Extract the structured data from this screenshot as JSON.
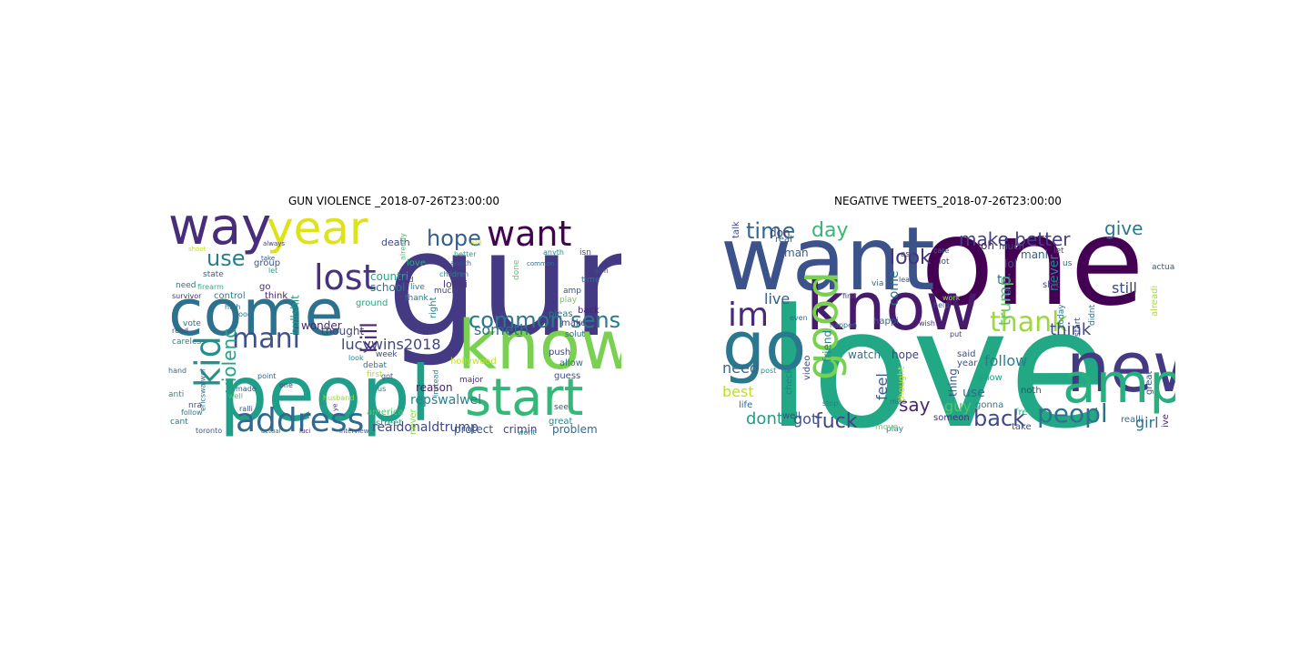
{
  "figure": {
    "panels": [
      {
        "title": "GUN VIOLENCE _2018-07-26T23:00:00",
        "words": [
          {
            "text": "gun",
            "color": "#443983"
          },
          {
            "text": "peopl",
            "color": "#1f9e89"
          },
          {
            "text": "come",
            "color": "#2c728e"
          },
          {
            "text": "know",
            "color": "#7ad151"
          },
          {
            "text": "way",
            "color": "#472d7b"
          },
          {
            "text": "year",
            "color": "#dde318"
          },
          {
            "text": "start",
            "color": "#35b779"
          },
          {
            "text": "address",
            "color": "#31688e"
          },
          {
            "text": "want",
            "color": "#440154"
          },
          {
            "text": "lost",
            "color": "#46327e"
          },
          {
            "text": "mani",
            "color": "#3b528b"
          },
          {
            "text": "kid",
            "color": "#21918c"
          },
          {
            "text": "common sens",
            "color": "#2a788e"
          },
          {
            "text": "hope",
            "color": "#355f8d"
          },
          {
            "text": "use",
            "color": "#277f8e"
          },
          {
            "text": "kill",
            "color": "#482576"
          },
          {
            "text": "violenc",
            "color": "#20a386"
          },
          {
            "text": "lucywins2018",
            "color": "#414487"
          },
          {
            "text": "someth",
            "color": "#2d708e"
          },
          {
            "text": "realdonaldtrump",
            "color": "#3e4a89"
          },
          {
            "text": "repswalwel",
            "color": "#26828e"
          },
          {
            "text": "wonder",
            "color": "#482878"
          },
          {
            "text": "reason",
            "color": "#481f70"
          },
          {
            "text": "thought",
            "color": "#3f4788"
          },
          {
            "text": "bullshit",
            "color": "#1e9b8a"
          },
          {
            "text": "problem",
            "color": "#31688e"
          },
          {
            "text": "crimin",
            "color": "#433e85"
          },
          {
            "text": "protect",
            "color": "#38588c"
          },
          {
            "text": "countri",
            "color": "#22a884"
          },
          {
            "text": "school",
            "color": "#2c728e"
          },
          {
            "text": "group",
            "color": "#3b528b"
          },
          {
            "text": "control",
            "color": "#287d8e"
          },
          {
            "text": "think",
            "color": "#482071"
          },
          {
            "text": "ground",
            "color": "#22a785"
          },
          {
            "text": "death",
            "color": "#3e4989"
          },
          {
            "text": "love",
            "color": "#29af7f"
          },
          {
            "text": "lobbi",
            "color": "#46337e"
          },
          {
            "text": "state",
            "color": "#33638d"
          },
          {
            "text": "need",
            "color": "#2c738e"
          },
          {
            "text": "survivor",
            "color": "#472c7a"
          },
          {
            "text": "vote",
            "color": "#2a768e"
          },
          {
            "text": "read",
            "color": "#3d4e8a"
          },
          {
            "text": "careless",
            "color": "#25858e"
          },
          {
            "text": "america",
            "color": "#52c569"
          },
          {
            "text": "street",
            "color": "#1fa188"
          },
          {
            "text": "never",
            "color": "#8fd744"
          },
          {
            "text": "guess",
            "color": "#3e4c8a"
          },
          {
            "text": "allow",
            "color": "#2e6e8e"
          },
          {
            "text": "push",
            "color": "#424086"
          },
          {
            "text": "make",
            "color": "#404588"
          },
          {
            "text": "back",
            "color": "#482475"
          },
          {
            "text": "pleas",
            "color": "#2a788e"
          },
          {
            "text": "play",
            "color": "#6ccd5a"
          },
          {
            "text": "solut",
            "color": "#2f6b8e"
          },
          {
            "text": "great",
            "color": "#23898e"
          },
          {
            "text": "see",
            "color": "#365c8d"
          },
          {
            "text": "toronto",
            "color": "#3a548c"
          },
          {
            "text": "actual",
            "color": "#2c718e"
          },
          {
            "text": "luci",
            "color": "#482173"
          },
          {
            "text": "interview",
            "color": "#3b518b"
          },
          {
            "text": "hollywood",
            "color": "#c0df25"
          },
          {
            "text": "major",
            "color": "#472a7a"
          },
          {
            "text": "debat",
            "color": "#2b748e"
          },
          {
            "text": "week",
            "color": "#3f4889"
          },
          {
            "text": "first",
            "color": "#b5de2b"
          },
          {
            "text": "instead",
            "color": "#277f8e"
          },
          {
            "text": "wont",
            "color": "#25838e"
          },
          {
            "text": "cant",
            "color": "#2a778e"
          },
          {
            "text": "nra",
            "color": "#3b528b"
          },
          {
            "text": "follow",
            "color": "#2c718e"
          },
          {
            "text": "anti",
            "color": "#1f968b"
          },
          {
            "text": "ericswalwel",
            "color": "#2e6f8e"
          },
          {
            "text": "ralli",
            "color": "#3e4a89"
          },
          {
            "text": "point",
            "color": "#32658e"
          },
          {
            "text": "made",
            "color": "#375b8d"
          },
          {
            "text": "well",
            "color": "#4ac16d"
          },
          {
            "text": "hand",
            "color": "#2f6c8e"
          },
          {
            "text": "go",
            "color": "#472e7c"
          },
          {
            "text": "high",
            "color": "#2d718e"
          },
          {
            "text": "right",
            "color": "#26828e"
          },
          {
            "text": "much",
            "color": "#404688"
          },
          {
            "text": "live",
            "color": "#2a788e"
          },
          {
            "text": "thank",
            "color": "#2b758e"
          },
          {
            "text": "guid",
            "color": "#46307e"
          },
          {
            "text": "anoth",
            "color": "#3a548c"
          },
          {
            "text": "better",
            "color": "#21a685"
          },
          {
            "text": "old",
            "color": "#c2df23"
          },
          {
            "text": "amp",
            "color": "#3c4f8a"
          },
          {
            "text": "time",
            "color": "#2b738e"
          },
          {
            "text": "isn",
            "color": "#3d4d8a"
          },
          {
            "text": "arm",
            "color": "#3c508b"
          },
          {
            "text": "anyth",
            "color": "#238a8d"
          },
          {
            "text": "common",
            "color": "#2d708e"
          },
          {
            "text": "done",
            "color": "#5ec962"
          },
          {
            "text": "children",
            "color": "#26818e"
          },
          {
            "text": "already",
            "color": "#48c16e"
          },
          {
            "text": "got",
            "color": "#3b528b"
          },
          {
            "text": "us",
            "color": "#2e6e8e"
          },
          {
            "text": "one",
            "color": "#3e4a89"
          },
          {
            "text": "firearm",
            "color": "#2ab07f"
          },
          {
            "text": "shoot",
            "color": "#c8e020"
          },
          {
            "text": "always",
            "color": "#453781"
          },
          {
            "text": "take",
            "color": "#3a548c"
          },
          {
            "text": "let",
            "color": "#20a486"
          },
          {
            "text": "look",
            "color": "#24878e"
          },
          {
            "text": "husband",
            "color": "#9bd93c"
          },
          {
            "text": "ye",
            "color": "#482677"
          },
          {
            "text": "good",
            "color": "#2c738e"
          },
          {
            "text": "gt",
            "color": "#b8de29"
          }
        ]
      },
      {
        "title": "NEGATIVE TWEETS_2018-07-26T23:00:00",
        "words": [
          {
            "text": "one",
            "color": "#440154"
          },
          {
            "text": "love",
            "color": "#22a884"
          },
          {
            "text": "want",
            "color": "#3b528b"
          },
          {
            "text": "know",
            "color": "#481a6c"
          },
          {
            "text": "go",
            "color": "#2a788e"
          },
          {
            "text": "good",
            "color": "#7ad151"
          },
          {
            "text": "new",
            "color": "#443983"
          },
          {
            "text": "amp",
            "color": "#29af7f"
          },
          {
            "text": "im",
            "color": "#482878"
          },
          {
            "text": "thank",
            "color": "#9bd93c"
          },
          {
            "text": "peopl",
            "color": "#2c728e"
          },
          {
            "text": "back",
            "color": "#3e4a89"
          },
          {
            "text": "fuck",
            "color": "#414487"
          },
          {
            "text": "time",
            "color": "#31688e"
          },
          {
            "text": "day",
            "color": "#35b779"
          },
          {
            "text": "look",
            "color": "#46327e"
          },
          {
            "text": "make better",
            "color": "#433e85"
          },
          {
            "text": "give",
            "color": "#2a788e"
          },
          {
            "text": "trump",
            "color": "#5ec962"
          },
          {
            "text": "think",
            "color": "#404688"
          },
          {
            "text": "follow",
            "color": "#277f8e"
          },
          {
            "text": "dont",
            "color": "#1f9e89"
          },
          {
            "text": "got",
            "color": "#3b528b"
          },
          {
            "text": "say",
            "color": "#482576"
          },
          {
            "text": "guy",
            "color": "#52c569"
          },
          {
            "text": "girl",
            "color": "#2d708e"
          },
          {
            "text": "best",
            "color": "#bddf26"
          },
          {
            "text": "need",
            "color": "#31688e"
          },
          {
            "text": "live",
            "color": "#355f8d"
          },
          {
            "text": "feel",
            "color": "#38598c"
          },
          {
            "text": "come",
            "color": "#2e6e8e"
          },
          {
            "text": "still",
            "color": "#3e4a89"
          },
          {
            "text": "tri",
            "color": "#2a788e"
          },
          {
            "text": "never",
            "color": "#26828e"
          },
          {
            "text": "oh",
            "color": "#482173"
          },
          {
            "text": "lol",
            "color": "#3b528b"
          },
          {
            "text": "use",
            "color": "#2c718e"
          },
          {
            "text": "don",
            "color": "#443a83"
          },
          {
            "text": "man",
            "color": "#365c8d"
          },
          {
            "text": "real",
            "color": "#31688e"
          },
          {
            "text": "talk",
            "color": "#3e4989"
          },
          {
            "text": "watch",
            "color": "#2b748e"
          },
          {
            "text": "hope",
            "color": "#424186"
          },
          {
            "text": "friend",
            "color": "#25848e"
          },
          {
            "text": "video",
            "color": "#3c4f8a"
          },
          {
            "text": "check",
            "color": "#277e8e"
          },
          {
            "text": "life",
            "color": "#2f6b8e"
          },
          {
            "text": "thing",
            "color": "#39568c"
          },
          {
            "text": "show",
            "color": "#1fa187"
          },
          {
            "text": "gonna",
            "color": "#287c8e"
          },
          {
            "text": "noth",
            "color": "#3f4788"
          },
          {
            "text": "great",
            "color": "#3c508b"
          },
          {
            "text": "realli",
            "color": "#2e6f8e"
          },
          {
            "text": "ive",
            "color": "#482677"
          },
          {
            "text": "take",
            "color": "#3d4d8a"
          },
          {
            "text": "free",
            "color": "#2ab07f"
          },
          {
            "text": "year",
            "color": "#3b528b"
          },
          {
            "text": "thought",
            "color": "#c8e020"
          },
          {
            "text": "said",
            "color": "#3e4c8a"
          },
          {
            "text": "happi",
            "color": "#32658e"
          },
          {
            "text": "well",
            "color": "#3b518b"
          },
          {
            "text": "someon",
            "color": "#46307e"
          },
          {
            "text": "play",
            "color": "#24878e"
          },
          {
            "text": "start",
            "color": "#3f4889"
          },
          {
            "text": "didnt",
            "color": "#2c728e"
          },
          {
            "text": "today",
            "color": "#2a768e"
          },
          {
            "text": "right",
            "color": "#3a548c"
          },
          {
            "text": "shit",
            "color": "#404588"
          },
          {
            "text": "mani",
            "color": "#33638d"
          },
          {
            "text": "much",
            "color": "#3d4e8a"
          },
          {
            "text": "us",
            "color": "#2e6e8e"
          },
          {
            "text": "let",
            "color": "#38588c"
          },
          {
            "text": "actual",
            "color": "#3b528b"
          },
          {
            "text": "alreadi",
            "color": "#aadc32"
          },
          {
            "text": "via",
            "color": "#2f6c8e"
          },
          {
            "text": "post",
            "color": "#1f968b"
          },
          {
            "text": "stop",
            "color": "#26818e"
          },
          {
            "text": "happen",
            "color": "#2c728e"
          },
          {
            "text": "first",
            "color": "#3e4a89"
          },
          {
            "text": "miss",
            "color": "#2a778e"
          },
          {
            "text": "leav",
            "color": "#3b528b"
          },
          {
            "text": "work",
            "color": "#8fd744"
          },
          {
            "text": "move",
            "color": "#6ccd5a"
          },
          {
            "text": "ask",
            "color": "#3d4d8a"
          },
          {
            "text": "care",
            "color": "#2d718e"
          },
          {
            "text": "lot",
            "color": "#3f4788"
          },
          {
            "text": "help",
            "color": "#365d8d"
          },
          {
            "text": "put",
            "color": "#46337e"
          },
          {
            "text": "even",
            "color": "#31688e"
          },
          {
            "text": "wish",
            "color": "#472c7a"
          }
        ]
      }
    ]
  }
}
